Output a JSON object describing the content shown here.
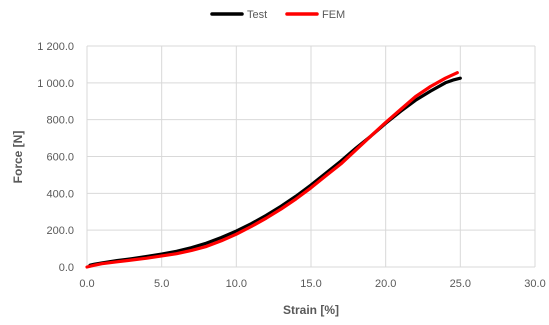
{
  "chart_data": {
    "type": "line",
    "title": "",
    "xlabel": "Strain [%]",
    "ylabel": "Force [N]",
    "xlim": [
      0,
      30
    ],
    "ylim": [
      0,
      1200
    ],
    "xticks": [
      0,
      5,
      10,
      15,
      20,
      25,
      30
    ],
    "yticks": [
      0,
      200,
      400,
      600,
      800,
      1000,
      1200
    ],
    "xtick_labels": [
      "0.0",
      "5.0",
      "10.0",
      "15.0",
      "20.0",
      "25.0",
      "30.0"
    ],
    "ytick_labels": [
      "0.0",
      "200.0",
      "400.0",
      "600.0",
      "800.0",
      "1 000.0",
      "1 200.0"
    ],
    "grid": true,
    "legend": "top-center",
    "series": [
      {
        "name": "Test",
        "color": "#000000",
        "x": [
          0.2,
          0.5,
          1,
          2,
          3,
          4,
          5,
          6,
          7,
          8,
          9,
          10,
          11,
          12,
          13,
          14,
          15,
          16,
          17,
          18,
          19,
          20,
          21,
          22,
          23,
          24,
          24.5,
          25
        ],
        "y": [
          10,
          15,
          22,
          35,
          45,
          57,
          70,
          85,
          105,
          130,
          160,
          195,
          235,
          280,
          330,
          385,
          445,
          510,
          575,
          645,
          710,
          780,
          845,
          905,
          955,
          1000,
          1015,
          1025
        ]
      },
      {
        "name": "FEM",
        "color": "#ff0000",
        "x": [
          0,
          0.5,
          1,
          2,
          3,
          4,
          5,
          6,
          7,
          8,
          9,
          10,
          11,
          12,
          13,
          14,
          15,
          16,
          17,
          18,
          19,
          20,
          21,
          22,
          23,
          24,
          24.8
        ],
        "y": [
          0,
          10,
          18,
          28,
          38,
          48,
          60,
          72,
          90,
          112,
          142,
          178,
          220,
          265,
          315,
          370,
          430,
          495,
          560,
          635,
          710,
          785,
          855,
          925,
          980,
          1025,
          1055
        ]
      }
    ]
  }
}
